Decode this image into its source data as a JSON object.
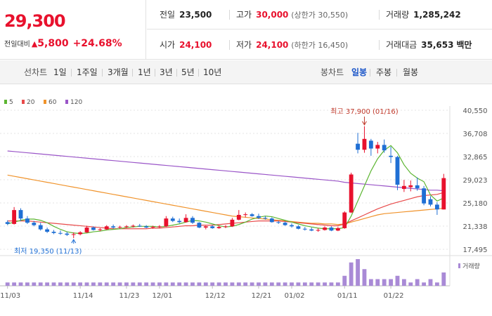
{
  "price": {
    "current": "29,300",
    "change_label": "전일대비",
    "change_arrow": "▲",
    "change": "5,800",
    "change_pct": "+24.68%"
  },
  "info": {
    "prev_close": {
      "label": "전일",
      "value": "23,500"
    },
    "high": {
      "label": "고가",
      "value": "30,000",
      "sub": "(상한가 30,550)"
    },
    "volume": {
      "label": "거래량",
      "value": "1,285,242"
    },
    "open": {
      "label": "시가",
      "value": "24,100"
    },
    "low": {
      "label": "저가",
      "value": "24,100",
      "sub": "(하한가 16,450)"
    },
    "trade_amount": {
      "label": "거래대금",
      "value": "35,653",
      "unit": "백만"
    }
  },
  "period_bar": {
    "line_chart_label": "선차트",
    "line_periods": [
      "1일",
      "1주일",
      "3개월",
      "1년",
      "3년",
      "5년",
      "10년"
    ],
    "candle_chart_label": "봉차트",
    "candle_periods": [
      "일봉",
      "주봉",
      "월봉"
    ],
    "active_candle": "일봉"
  },
  "colors": {
    "up": "#e8112d",
    "down": "#1f6fd4",
    "ma5": "#5cb531",
    "ma20": "#e84a4a",
    "ma60": "#f0932b",
    "ma120": "#9a55c8"
  },
  "chart_data": {
    "type": "candlestick",
    "legend": [
      "5",
      "20",
      "60",
      "120"
    ],
    "y_ticks": [
      "40,550",
      "36,708",
      "32,865",
      "29,023",
      "25,180",
      "21,338",
      "17,495"
    ],
    "ylim": [
      17495,
      40550
    ],
    "x_labels": [
      "11/03",
      "11/14",
      "11/23",
      "12/01",
      "12/12",
      "12/21",
      "01/02",
      "01/11",
      "01/22"
    ],
    "x_label_index": [
      0,
      11,
      18,
      23,
      31,
      38,
      43,
      51,
      58
    ],
    "annotations": {
      "high": {
        "text": "최고 37,900 (01/16)",
        "index": 54,
        "value": 37900
      },
      "low": {
        "text": "최저 19,350 (11/13)",
        "index": 10,
        "value": 19350
      }
    },
    "volume_label": "거래량",
    "candles": [
      {
        "o": 22000,
        "h": 22300,
        "l": 21500,
        "c": 21700
      },
      {
        "o": 21700,
        "h": 24500,
        "l": 21600,
        "c": 24000
      },
      {
        "o": 24000,
        "h": 24300,
        "l": 22200,
        "c": 22600
      },
      {
        "o": 22600,
        "h": 23000,
        "l": 21700,
        "c": 21900
      },
      {
        "o": 21900,
        "h": 22200,
        "l": 21300,
        "c": 21500
      },
      {
        "o": 21500,
        "h": 21900,
        "l": 20600,
        "c": 20800
      },
      {
        "o": 20800,
        "h": 21100,
        "l": 20200,
        "c": 20400
      },
      {
        "o": 20400,
        "h": 20700,
        "l": 20000,
        "c": 20200
      },
      {
        "o": 20200,
        "h": 20600,
        "l": 19900,
        "c": 20100
      },
      {
        "o": 20100,
        "h": 20400,
        "l": 19700,
        "c": 19900
      },
      {
        "o": 19900,
        "h": 20300,
        "l": 19350,
        "c": 20000
      },
      {
        "o": 20000,
        "h": 20500,
        "l": 19800,
        "c": 20300
      },
      {
        "o": 20300,
        "h": 21400,
        "l": 20200,
        "c": 21100
      },
      {
        "o": 21100,
        "h": 21300,
        "l": 20600,
        "c": 20700
      },
      {
        "o": 20700,
        "h": 21000,
        "l": 20500,
        "c": 20800
      },
      {
        "o": 20800,
        "h": 21500,
        "l": 20700,
        "c": 21300
      },
      {
        "o": 21300,
        "h": 21600,
        "l": 20900,
        "c": 21100
      },
      {
        "o": 21100,
        "h": 21400,
        "l": 20900,
        "c": 21200
      },
      {
        "o": 21200,
        "h": 21500,
        "l": 21000,
        "c": 21300
      },
      {
        "o": 21300,
        "h": 21600,
        "l": 21100,
        "c": 21400
      },
      {
        "o": 21400,
        "h": 21700,
        "l": 21200,
        "c": 21300
      },
      {
        "o": 21300,
        "h": 21500,
        "l": 21000,
        "c": 21100
      },
      {
        "o": 21100,
        "h": 21400,
        "l": 20900,
        "c": 21200
      },
      {
        "o": 21200,
        "h": 21500,
        "l": 21000,
        "c": 21300
      },
      {
        "o": 21300,
        "h": 23000,
        "l": 21200,
        "c": 22600
      },
      {
        "o": 22600,
        "h": 22900,
        "l": 22000,
        "c": 22200
      },
      {
        "o": 22200,
        "h": 22600,
        "l": 21800,
        "c": 22000
      },
      {
        "o": 22000,
        "h": 23300,
        "l": 21900,
        "c": 22700
      },
      {
        "o": 22700,
        "h": 23000,
        "l": 21700,
        "c": 21900
      },
      {
        "o": 21900,
        "h": 22000,
        "l": 21000,
        "c": 21100
      },
      {
        "o": 21100,
        "h": 21400,
        "l": 20800,
        "c": 21300
      },
      {
        "o": 21300,
        "h": 21500,
        "l": 20900,
        "c": 21000
      },
      {
        "o": 21000,
        "h": 21400,
        "l": 20900,
        "c": 21200
      },
      {
        "o": 21200,
        "h": 21500,
        "l": 21000,
        "c": 21300
      },
      {
        "o": 21300,
        "h": 22700,
        "l": 21200,
        "c": 22400
      },
      {
        "o": 22400,
        "h": 24000,
        "l": 22300,
        "c": 23200
      },
      {
        "o": 23200,
        "h": 23600,
        "l": 22800,
        "c": 23300
      },
      {
        "o": 23300,
        "h": 23500,
        "l": 22900,
        "c": 23000
      },
      {
        "o": 23000,
        "h": 23400,
        "l": 22500,
        "c": 22700
      },
      {
        "o": 22700,
        "h": 23000,
        "l": 22400,
        "c": 22600
      },
      {
        "o": 22600,
        "h": 22800,
        "l": 21900,
        "c": 22000
      },
      {
        "o": 22000,
        "h": 22200,
        "l": 21700,
        "c": 21900
      },
      {
        "o": 21900,
        "h": 22100,
        "l": 21400,
        "c": 21500
      },
      {
        "o": 21500,
        "h": 21800,
        "l": 21100,
        "c": 21300
      },
      {
        "o": 21300,
        "h": 21500,
        "l": 20800,
        "c": 20900
      },
      {
        "o": 20900,
        "h": 21200,
        "l": 20600,
        "c": 20800
      },
      {
        "o": 20800,
        "h": 21100,
        "l": 20500,
        "c": 20600
      },
      {
        "o": 20600,
        "h": 21000,
        "l": 20400,
        "c": 20700
      },
      {
        "o": 20700,
        "h": 21300,
        "l": 20600,
        "c": 21100
      },
      {
        "o": 21100,
        "h": 21300,
        "l": 20500,
        "c": 20600
      },
      {
        "o": 20600,
        "h": 21200,
        "l": 20500,
        "c": 21000
      },
      {
        "o": 21000,
        "h": 23800,
        "l": 20900,
        "c": 23600
      },
      {
        "o": 23600,
        "h": 30200,
        "l": 23500,
        "c": 29900
      },
      {
        "o": 35000,
        "h": 36800,
        "l": 33400,
        "c": 34000
      },
      {
        "o": 34000,
        "h": 37900,
        "l": 33500,
        "c": 35800
      },
      {
        "o": 35500,
        "h": 35800,
        "l": 33000,
        "c": 34200
      },
      {
        "o": 34200,
        "h": 35300,
        "l": 33400,
        "c": 34800
      },
      {
        "o": 34800,
        "h": 35700,
        "l": 33500,
        "c": 33900
      },
      {
        "o": 33000,
        "h": 34500,
        "l": 31800,
        "c": 32800
      },
      {
        "o": 32800,
        "h": 33000,
        "l": 27300,
        "c": 28200
      },
      {
        "o": 27500,
        "h": 29000,
        "l": 27000,
        "c": 28000
      },
      {
        "o": 27800,
        "h": 28900,
        "l": 27100,
        "c": 28100
      },
      {
        "o": 28100,
        "h": 29400,
        "l": 27200,
        "c": 27600
      },
      {
        "o": 27600,
        "h": 28000,
        "l": 24800,
        "c": 25100
      },
      {
        "o": 25800,
        "h": 26300,
        "l": 24600,
        "c": 24900
      },
      {
        "o": 24900,
        "h": 25300,
        "l": 23200,
        "c": 24100
      },
      {
        "o": 24100,
        "h": 30000,
        "l": 24100,
        "c": 29300
      }
    ],
    "volume": [
      1,
      1,
      1,
      1,
      1,
      1,
      1,
      1,
      1,
      1,
      1,
      1,
      1,
      1,
      1,
      1,
      1,
      1,
      1,
      1,
      1,
      1,
      1,
      1,
      1,
      1,
      1,
      1,
      1,
      1,
      1,
      1,
      1,
      1,
      1,
      1,
      1,
      1,
      1,
      1,
      1,
      1,
      1,
      1,
      1,
      1,
      1,
      1,
      1,
      1,
      1,
      3,
      7,
      8,
      5,
      2,
      2,
      2,
      2,
      3,
      2,
      1,
      2,
      1,
      2,
      1,
      4
    ],
    "ma5": [
      21700,
      22000,
      22300,
      22500,
      22500,
      22300,
      21900,
      21300,
      20800,
      20400,
      20200,
      20100,
      20200,
      20400,
      20500,
      20700,
      20800,
      20900,
      21100,
      21200,
      21300,
      21300,
      21300,
      21200,
      21300,
      21500,
      21700,
      22000,
      22300,
      22200,
      22000,
      21700,
      21400,
      21200,
      21300,
      21600,
      22000,
      22500,
      22800,
      23000,
      22900,
      22600,
      22300,
      22000,
      21700,
      21400,
      21200,
      21000,
      20900,
      20900,
      20900,
      21100,
      23000,
      25500,
      28000,
      30500,
      32500,
      33900,
      34700,
      33500,
      31500,
      30100,
      29300,
      28700,
      26500,
      25500,
      26000
    ],
    "ma20": [
      22200,
      22200,
      22200,
      22200,
      22100,
      22000,
      21900,
      21800,
      21700,
      21600,
      21500,
      21400,
      21300,
      21200,
      21100,
      21000,
      20900,
      20900,
      20900,
      20900,
      20900,
      20900,
      21000,
      21000,
      21100,
      21200,
      21300,
      21400,
      21400,
      21500,
      21500,
      21500,
      21600,
      21700,
      21800,
      21900,
      22000,
      22100,
      22200,
      22200,
      22200,
      22200,
      22100,
      22000,
      21900,
      21800,
      21700,
      21600,
      21500,
      21400,
      21400,
      21700,
      22200,
      22700,
      23200,
      23700,
      24200,
      24600,
      25000,
      25300,
      25600,
      25900,
      26200,
      26400,
      26500,
      26600,
      26900
    ],
    "ma60": [
      29800,
      29600,
      29400,
      29200,
      29000,
      28800,
      28600,
      28400,
      28200,
      28000,
      27800,
      27600,
      27400,
      27200,
      27000,
      26800,
      26600,
      26400,
      26200,
      26000,
      25800,
      25600,
      25400,
      25200,
      25000,
      24800,
      24600,
      24400,
      24200,
      24000,
      23800,
      23600,
      23400,
      23200,
      23000,
      22900,
      22800,
      22700,
      22600,
      22500,
      22400,
      22300,
      22200,
      22100,
      22000,
      21900,
      21800,
      21800,
      21700,
      21700,
      21600,
      21700,
      22000,
      22300,
      22600,
      22900,
      23200,
      23400,
      23500,
      23600,
      23700,
      23800,
      23900,
      24000,
      24100,
      24200,
      24300
    ],
    "ma120": [
      33800,
      33700,
      33600,
      33500,
      33400,
      33300,
      33200,
      33100,
      33000,
      32900,
      32800,
      32700,
      32600,
      32500,
      32400,
      32300,
      32200,
      32100,
      32000,
      31900,
      31800,
      31700,
      31600,
      31500,
      31400,
      31300,
      31200,
      31100,
      31000,
      30900,
      30800,
      30700,
      30600,
      30500,
      30400,
      30300,
      30200,
      30100,
      30000,
      29900,
      29800,
      29700,
      29600,
      29500,
      29400,
      29300,
      29200,
      29100,
      29000,
      28900,
      28800,
      28600,
      28500,
      28400,
      28300,
      28200,
      28100,
      28000,
      27900,
      27800,
      27700,
      27600,
      27500,
      27400,
      27300,
      27300,
      27200
    ]
  }
}
